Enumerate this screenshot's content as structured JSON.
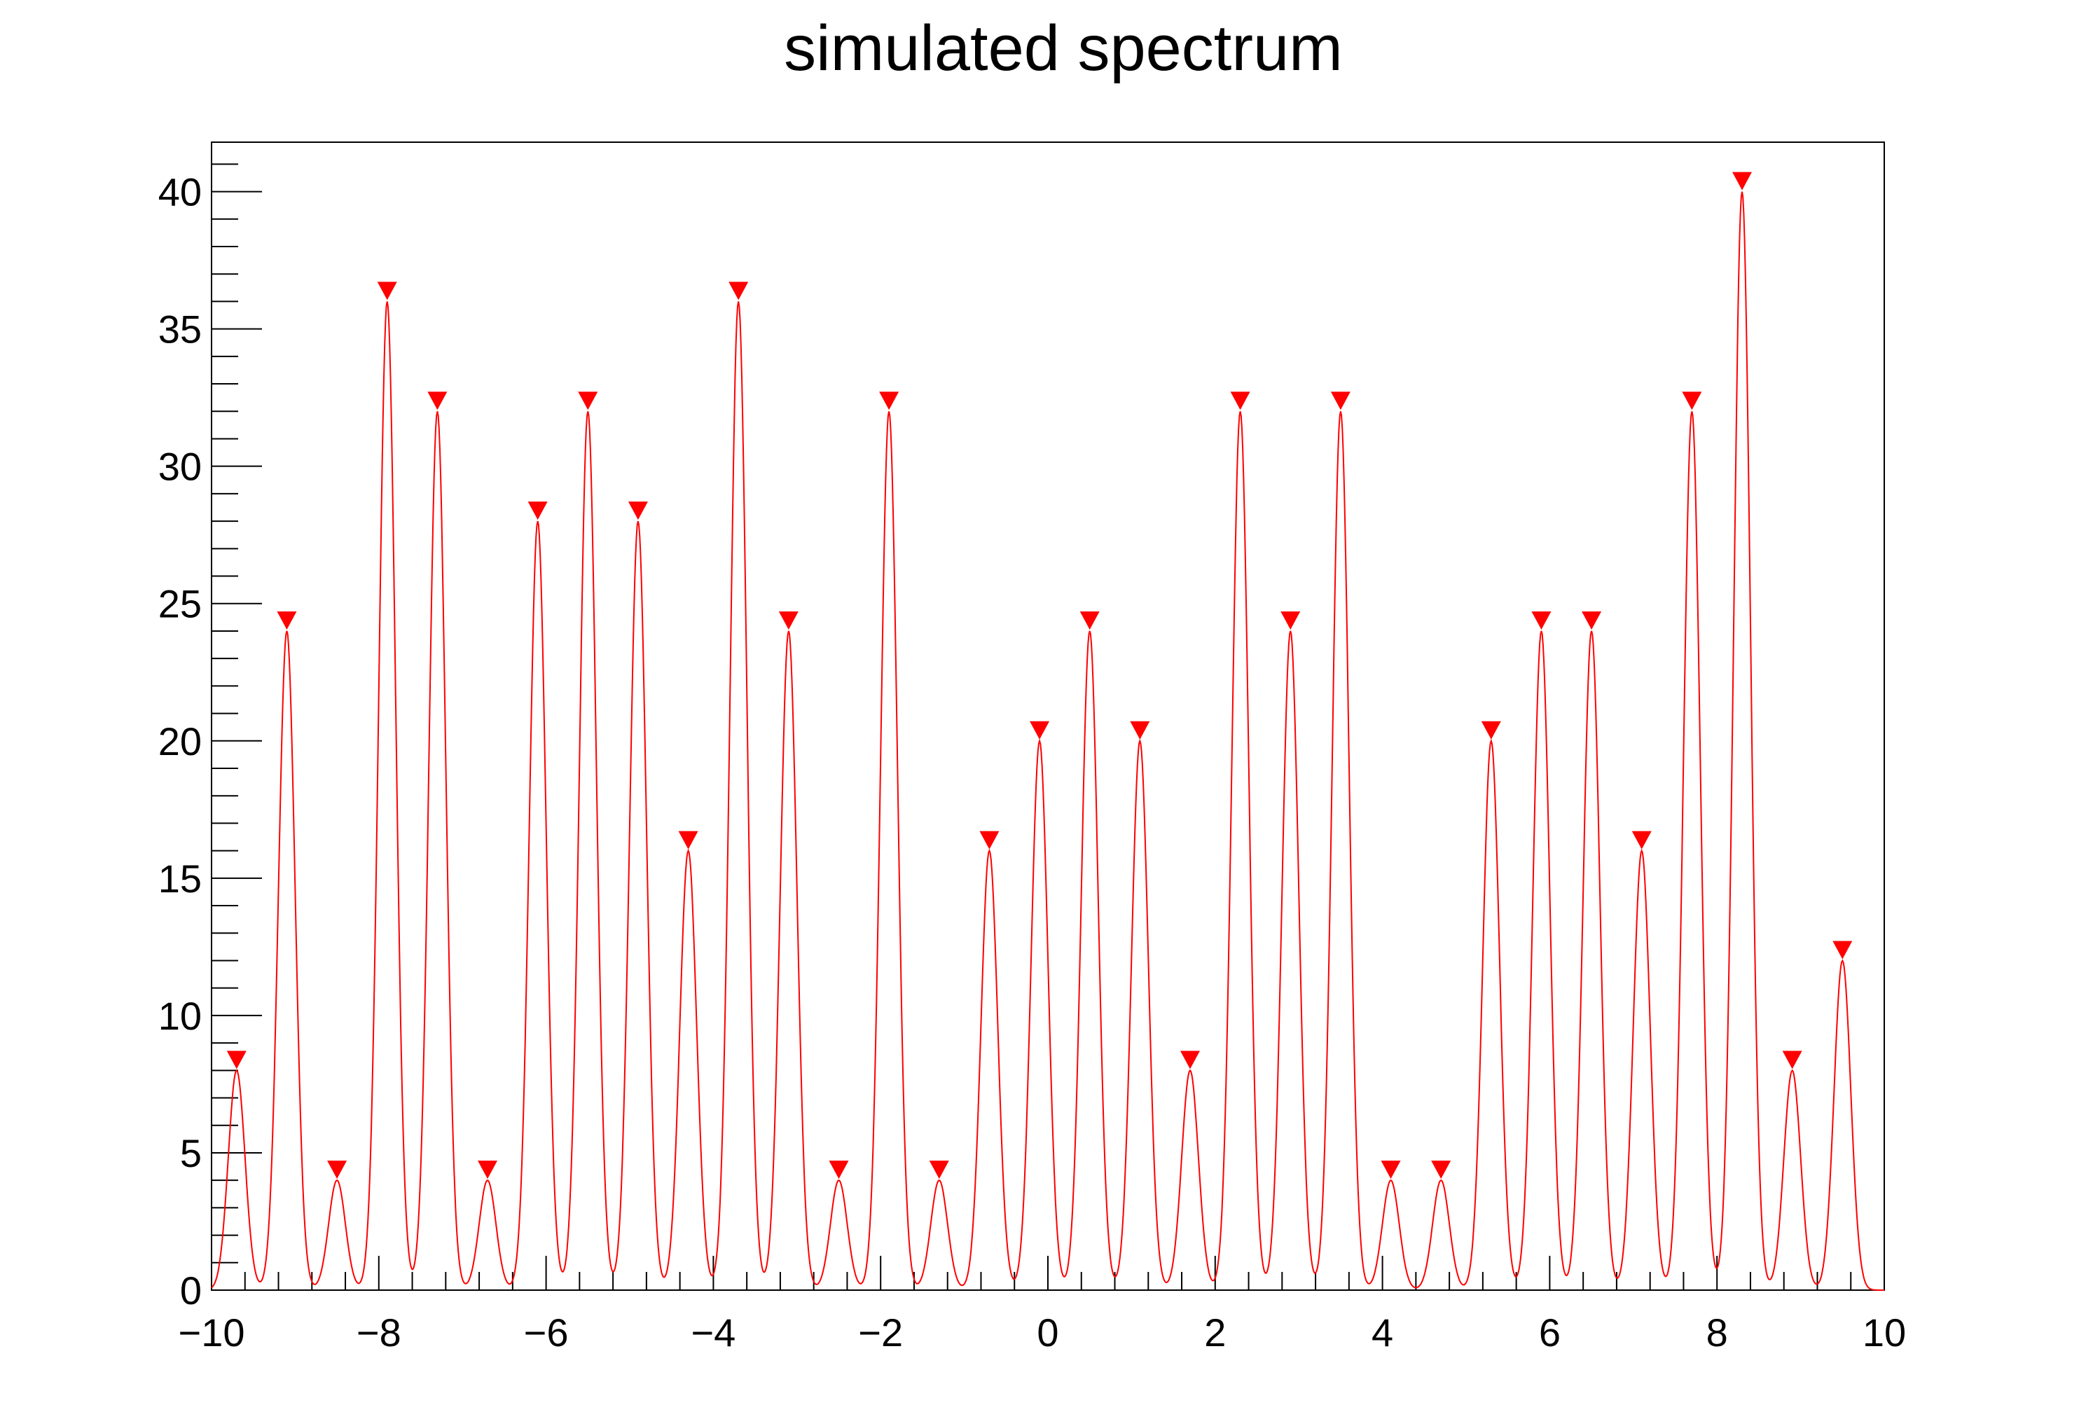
{
  "chart_data": {
    "type": "line",
    "title": "simulated spectrum",
    "xlabel": "",
    "ylabel": "",
    "xlim": [
      -10,
      10
    ],
    "ylim": [
      0,
      41.8
    ],
    "x_ticks": [
      "−10",
      "−8",
      "−6",
      "−4",
      "−2",
      "0",
      "2",
      "4",
      "6",
      "8",
      "10"
    ],
    "x_tick_values": [
      -10,
      -8,
      -6,
      -4,
      -2,
      0,
      2,
      4,
      6,
      8,
      10
    ],
    "y_ticks": [
      "0",
      "5",
      "10",
      "15",
      "20",
      "25",
      "30",
      "35",
      "40"
    ],
    "y_tick_values": [
      0,
      5,
      10,
      15,
      20,
      25,
      30,
      35,
      40
    ],
    "grid": false,
    "line_color": "#ff0000",
    "marker_color": "#ff0000",
    "peak_sigma": 0.1,
    "peaks": {
      "x": [
        -9.7,
        -9.1,
        -8.5,
        -7.9,
        -7.3,
        -6.7,
        -6.1,
        -5.5,
        -4.9,
        -4.3,
        -3.7,
        -3.1,
        -2.5,
        -1.9,
        -1.3,
        -0.7,
        -0.1,
        0.5,
        1.1,
        1.7,
        2.3,
        2.9,
        3.5,
        4.1,
        4.7,
        5.3,
        5.9,
        6.5,
        7.1,
        7.7,
        8.3,
        8.9,
        9.5
      ],
      "y": [
        8,
        24,
        4,
        36,
        32,
        4,
        28,
        32,
        28,
        16,
        36,
        24,
        4,
        32,
        4,
        16,
        20,
        24,
        20,
        8,
        32,
        24,
        32,
        4,
        4,
        20,
        24,
        24,
        16,
        32,
        40,
        8,
        12
      ]
    }
  }
}
